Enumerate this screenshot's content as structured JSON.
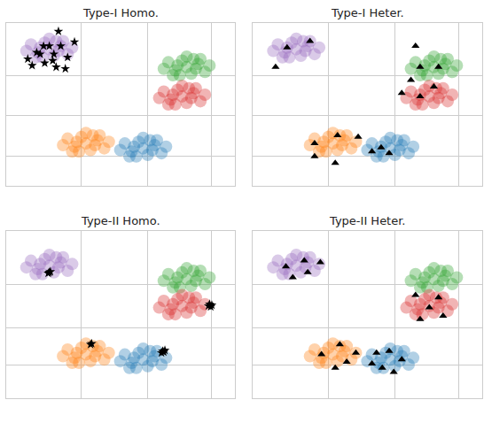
{
  "chart_data": [
    {
      "type": "scatter",
      "title": "Type-I Homo.",
      "xlim": [
        0,
        10
      ],
      "ylim": [
        0,
        10
      ],
      "xticks": [
        3.3,
        6.2,
        9.0
      ],
      "yticks": [
        1.8,
        4.3,
        6.8
      ],
      "grid": true,
      "tick_labels": false,
      "series": [
        {
          "color": "#9467bd",
          "marker": "circle",
          "x": [
            1.9,
            2.4,
            1.4,
            2.7,
            1.1,
            2.2,
            1.6,
            2.9,
            0.9,
            2.1,
            1.7,
            2.5,
            1.3,
            2.3,
            1.5,
            1.9
          ],
          "y": [
            8.4,
            8.6,
            8.2,
            8.1,
            8.7,
            8.9,
            7.9,
            8.5,
            8.3,
            8.0,
            8.8,
            8.9,
            7.9,
            8.3,
            8.5,
            9.05
          ]
        },
        {
          "color": "#2ca02c",
          "marker": "circle",
          "x": [
            7.9,
            8.4,
            7.4,
            8.7,
            7.1,
            8.2,
            7.6,
            8.9,
            6.9,
            8.1,
            7.7,
            8.5,
            7.3,
            8.3,
            7.5,
            7.9
          ],
          "y": [
            7.3,
            7.5,
            7.1,
            7.0,
            7.6,
            7.8,
            6.8,
            7.4,
            7.2,
            6.9,
            7.7,
            7.8,
            6.8,
            7.2,
            7.4,
            7.95
          ]
        },
        {
          "color": "#d62728",
          "marker": "circle",
          "x": [
            7.7,
            8.2,
            7.2,
            8.5,
            6.9,
            8.0,
            7.4,
            8.7,
            6.7,
            7.9,
            7.5,
            8.3,
            7.1,
            8.1,
            7.3,
            7.7
          ],
          "y": [
            5.5,
            5.7,
            5.3,
            5.2,
            5.8,
            6.0,
            5.0,
            5.6,
            5.4,
            5.1,
            5.9,
            6.0,
            5.0,
            5.4,
            5.6,
            6.15
          ]
        },
        {
          "color": "#ff7f0e",
          "marker": "circle",
          "x": [
            3.5,
            4.0,
            3.0,
            4.3,
            2.7,
            3.8,
            3.2,
            4.5,
            2.5,
            3.7,
            3.3,
            4.1,
            2.9,
            3.9,
            3.1,
            3.5
          ],
          "y": [
            2.6,
            2.8,
            2.4,
            2.3,
            2.9,
            3.1,
            2.1,
            2.7,
            2.5,
            2.2,
            3.0,
            3.1,
            2.1,
            2.5,
            2.7,
            3.25
          ]
        },
        {
          "color": "#1f77b4",
          "marker": "circle",
          "x": [
            6.0,
            6.5,
            5.5,
            6.8,
            5.2,
            6.3,
            5.7,
            7.0,
            5.0,
            6.2,
            5.8,
            6.6,
            5.4,
            6.4,
            5.6,
            6.0
          ],
          "y": [
            2.3,
            2.5,
            2.1,
            2.0,
            2.6,
            2.8,
            1.8,
            2.4,
            2.2,
            1.9,
            2.7,
            2.8,
            1.8,
            2.2,
            2.4,
            2.95
          ]
        },
        {
          "color": "#000000",
          "marker": "star",
          "x": [
            2.3,
            1.35,
            1.9,
            2.4,
            0.96,
            1.5,
            2.1,
            2.7,
            1.7,
            2.2,
            1.15,
            2.6,
            3.0,
            1.65,
            2.05
          ],
          "y": [
            9.5,
            8.2,
            8.6,
            8.6,
            7.8,
            8.1,
            8.1,
            7.9,
            7.55,
            7.3,
            7.4,
            7.2,
            8.85,
            8.6,
            7.7
          ]
        }
      ]
    },
    {
      "type": "scatter",
      "title": "Type-I Heter.",
      "xlim": [
        0,
        10
      ],
      "ylim": [
        0,
        10
      ],
      "xticks": [
        3.3,
        6.2,
        9.0
      ],
      "yticks": [
        1.8,
        4.3,
        6.8
      ],
      "grid": true,
      "tick_labels": false,
      "series": [
        {
          "color": "#9467bd",
          "marker": "circle",
          "x": [
            1.9,
            2.4,
            1.4,
            2.7,
            1.1,
            2.2,
            1.6,
            2.9,
            0.9,
            2.1,
            1.7,
            2.5,
            1.3,
            2.3,
            1.5,
            1.9
          ],
          "y": [
            8.4,
            8.6,
            8.2,
            8.1,
            8.7,
            8.9,
            7.9,
            8.5,
            8.3,
            8.0,
            8.8,
            8.9,
            7.9,
            8.3,
            8.5,
            9.05
          ]
        },
        {
          "color": "#2ca02c",
          "marker": "circle",
          "x": [
            7.9,
            8.4,
            7.4,
            8.7,
            7.1,
            8.2,
            7.6,
            8.9,
            6.9,
            8.1,
            7.7,
            8.5,
            7.3,
            8.3,
            7.5,
            7.9
          ],
          "y": [
            7.3,
            7.5,
            7.1,
            7.0,
            7.6,
            7.8,
            6.8,
            7.4,
            7.2,
            6.9,
            7.7,
            7.8,
            6.8,
            7.2,
            7.4,
            7.95
          ]
        },
        {
          "color": "#d62728",
          "marker": "circle",
          "x": [
            7.7,
            8.2,
            7.2,
            8.5,
            6.9,
            8.0,
            7.4,
            8.7,
            6.7,
            7.9,
            7.5,
            8.3,
            7.1,
            8.1,
            7.3,
            7.7
          ],
          "y": [
            5.5,
            5.7,
            5.3,
            5.2,
            5.8,
            6.0,
            5.0,
            5.6,
            5.4,
            5.1,
            5.9,
            6.0,
            5.0,
            5.4,
            5.6,
            6.15
          ]
        },
        {
          "color": "#ff7f0e",
          "marker": "circle",
          "x": [
            3.5,
            4.0,
            3.0,
            4.3,
            2.7,
            3.8,
            3.2,
            4.5,
            2.5,
            3.7,
            3.3,
            4.1,
            2.9,
            3.9,
            3.1,
            3.5
          ],
          "y": [
            2.6,
            2.8,
            2.4,
            2.3,
            2.9,
            3.1,
            2.1,
            2.7,
            2.5,
            2.2,
            3.0,
            3.1,
            2.1,
            2.5,
            2.7,
            3.25
          ]
        },
        {
          "color": "#1f77b4",
          "marker": "circle",
          "x": [
            6.0,
            6.5,
            5.5,
            6.8,
            5.2,
            6.3,
            5.7,
            7.0,
            5.0,
            6.2,
            5.8,
            6.6,
            5.4,
            6.4,
            5.6,
            6.0
          ],
          "y": [
            2.3,
            2.5,
            2.1,
            2.0,
            2.6,
            2.8,
            1.8,
            2.4,
            2.2,
            1.9,
            2.7,
            2.8,
            1.8,
            2.2,
            2.4,
            2.95
          ]
        },
        {
          "color": "#000000",
          "marker": "triangle-up",
          "x": [
            1.5,
            2.5,
            1.0,
            7.1,
            8.1,
            7.3,
            6.5,
            7.3,
            7.9,
            6.9,
            2.7,
            3.7,
            4.6,
            3.6,
            2.7,
            5.2,
            5.95,
            5.6
          ],
          "y": [
            8.5,
            8.9,
            7.3,
            8.6,
            7.3,
            7.3,
            5.7,
            5.5,
            6.1,
            6.5,
            2.6,
            3.1,
            3.0,
            1.4,
            1.8,
            2.1,
            2.0,
            2.35
          ]
        }
      ]
    },
    {
      "type": "scatter",
      "title": "Type-II Homo.",
      "xlim": [
        0,
        10
      ],
      "ylim": [
        0,
        10
      ],
      "xticks": [
        3.3,
        6.2,
        9.0
      ],
      "yticks": [
        1.95,
        4.2,
        6.8
      ],
      "grid": true,
      "tick_labels": false,
      "series": [
        {
          "color": "#9467bd",
          "marker": "circle",
          "x": [
            1.9,
            2.4,
            1.4,
            2.7,
            1.1,
            2.2,
            1.6,
            2.9,
            0.9,
            2.1,
            1.7,
            2.5,
            1.3,
            2.3,
            1.5,
            1.9
          ],
          "y": [
            7.9,
            8.1,
            7.7,
            7.6,
            8.2,
            8.4,
            7.4,
            8.0,
            7.8,
            7.5,
            8.3,
            8.4,
            7.4,
            7.8,
            8.0,
            8.55
          ]
        },
        {
          "color": "#2ca02c",
          "marker": "circle",
          "x": [
            7.9,
            8.4,
            7.4,
            8.7,
            7.1,
            8.2,
            7.6,
            8.9,
            6.9,
            8.1,
            7.7,
            8.5,
            7.3,
            8.3,
            7.5,
            7.9
          ],
          "y": [
            7.1,
            7.3,
            6.9,
            6.8,
            7.4,
            7.6,
            6.6,
            7.2,
            7.0,
            6.7,
            7.5,
            7.6,
            6.6,
            7.0,
            7.2,
            7.75
          ]
        },
        {
          "color": "#d62728",
          "marker": "circle",
          "x": [
            7.7,
            8.2,
            7.2,
            8.5,
            6.9,
            8.0,
            7.4,
            8.7,
            6.7,
            7.9,
            7.5,
            8.3,
            7.1,
            8.1,
            7.3,
            7.7
          ],
          "y": [
            5.5,
            5.7,
            5.3,
            5.2,
            5.8,
            6.0,
            5.0,
            5.6,
            5.4,
            5.1,
            5.9,
            6.0,
            5.0,
            5.4,
            5.6,
            6.15
          ]
        },
        {
          "color": "#ff7f0e",
          "marker": "circle",
          "x": [
            3.5,
            4.0,
            3.0,
            4.3,
            2.7,
            3.8,
            3.2,
            4.5,
            2.5,
            3.7,
            3.3,
            4.1,
            2.9,
            3.9,
            3.1,
            3.5
          ],
          "y": [
            2.6,
            2.8,
            2.4,
            2.3,
            2.9,
            3.1,
            2.1,
            2.7,
            2.5,
            2.2,
            3.0,
            3.1,
            2.1,
            2.5,
            2.7,
            3.25
          ]
        },
        {
          "color": "#1f77b4",
          "marker": "circle",
          "x": [
            6.0,
            6.5,
            5.5,
            6.8,
            5.2,
            6.3,
            5.7,
            7.0,
            5.0,
            6.2,
            5.8,
            6.6,
            5.4,
            6.4,
            5.6,
            6.0
          ],
          "y": [
            2.3,
            2.5,
            2.1,
            2.0,
            2.6,
            2.8,
            1.8,
            2.4,
            2.2,
            1.9,
            2.7,
            2.8,
            1.8,
            2.2,
            2.4,
            2.95
          ]
        },
        {
          "color": "#000000",
          "marker": "star",
          "x": [
            1.9,
            1.95,
            1.85,
            8.9,
            9.0,
            8.85,
            8.95,
            3.7,
            3.75,
            6.85,
            6.9,
            6.8,
            6.95
          ],
          "y": [
            7.5,
            7.55,
            7.45,
            5.6,
            5.55,
            5.5,
            5.45,
            3.2,
            3.25,
            2.8,
            2.75,
            2.7,
            2.85
          ]
        }
      ]
    },
    {
      "type": "scatter",
      "title": "Type-II Heter.",
      "xlim": [
        0,
        10
      ],
      "ylim": [
        0,
        10
      ],
      "xticks": [
        3.3,
        6.2,
        9.0
      ],
      "yticks": [
        1.95,
        4.2,
        6.8
      ],
      "grid": true,
      "tick_labels": false,
      "series": [
        {
          "color": "#9467bd",
          "marker": "circle",
          "x": [
            1.9,
            2.4,
            1.4,
            2.7,
            1.1,
            2.2,
            1.6,
            2.9,
            0.9,
            2.1,
            1.7,
            2.5,
            1.3,
            2.3,
            1.5,
            1.9
          ],
          "y": [
            7.9,
            8.1,
            7.7,
            7.6,
            8.2,
            8.4,
            7.4,
            8.0,
            7.8,
            7.5,
            8.3,
            8.4,
            7.4,
            7.8,
            8.0,
            8.55
          ]
        },
        {
          "color": "#2ca02c",
          "marker": "circle",
          "x": [
            7.9,
            8.4,
            7.4,
            8.7,
            7.1,
            8.2,
            7.6,
            8.9,
            6.9,
            8.1,
            7.7,
            8.5,
            7.3,
            8.3,
            7.5,
            7.9
          ],
          "y": [
            7.1,
            7.3,
            6.9,
            6.8,
            7.4,
            7.6,
            6.6,
            7.2,
            7.0,
            6.7,
            7.5,
            7.6,
            6.6,
            7.0,
            7.2,
            7.75
          ]
        },
        {
          "color": "#d62728",
          "marker": "circle",
          "x": [
            7.7,
            8.2,
            7.2,
            8.5,
            6.9,
            8.0,
            7.4,
            8.7,
            6.7,
            7.9,
            7.5,
            8.3,
            7.1,
            8.1,
            7.3,
            7.7
          ],
          "y": [
            5.5,
            5.7,
            5.3,
            5.2,
            5.8,
            6.0,
            5.0,
            5.6,
            5.4,
            5.1,
            5.9,
            6.0,
            5.0,
            5.4,
            5.6,
            6.15
          ]
        },
        {
          "color": "#ff7f0e",
          "marker": "circle",
          "x": [
            3.5,
            4.0,
            3.0,
            4.3,
            2.7,
            3.8,
            3.2,
            4.5,
            2.5,
            3.7,
            3.3,
            4.1,
            2.9,
            3.9,
            3.1,
            3.5
          ],
          "y": [
            2.6,
            2.8,
            2.4,
            2.3,
            2.9,
            3.1,
            2.1,
            2.7,
            2.5,
            2.2,
            3.0,
            3.1,
            2.1,
            2.5,
            2.7,
            3.25
          ]
        },
        {
          "color": "#1f77b4",
          "marker": "circle",
          "x": [
            6.0,
            6.5,
            5.5,
            6.8,
            5.2,
            6.3,
            5.7,
            7.0,
            5.0,
            6.2,
            5.8,
            6.6,
            5.4,
            6.4,
            5.6,
            6.0
          ],
          "y": [
            2.3,
            2.5,
            2.1,
            2.0,
            2.6,
            2.8,
            1.8,
            2.4,
            2.2,
            1.9,
            2.7,
            2.8,
            1.8,
            2.2,
            2.4,
            2.95
          ]
        },
        {
          "color": "#000000",
          "marker": "triangle-up",
          "x": [
            1.45,
            2.25,
            2.95,
            1.75,
            2.4,
            7.1,
            8.1,
            7.7,
            7.3,
            8.3,
            3.0,
            3.8,
            4.1,
            4.5,
            3.6,
            5.4,
            5.95,
            6.5,
            6.15,
            5.65,
            5.2
          ],
          "y": [
            7.85,
            8.2,
            8.1,
            7.2,
            7.5,
            6.15,
            6.0,
            5.4,
            4.7,
            4.9,
            2.6,
            3.2,
            2.15,
            2.7,
            1.8,
            2.7,
            2.8,
            2.3,
            1.55,
            1.8,
            2.05
          ]
        }
      ]
    }
  ]
}
